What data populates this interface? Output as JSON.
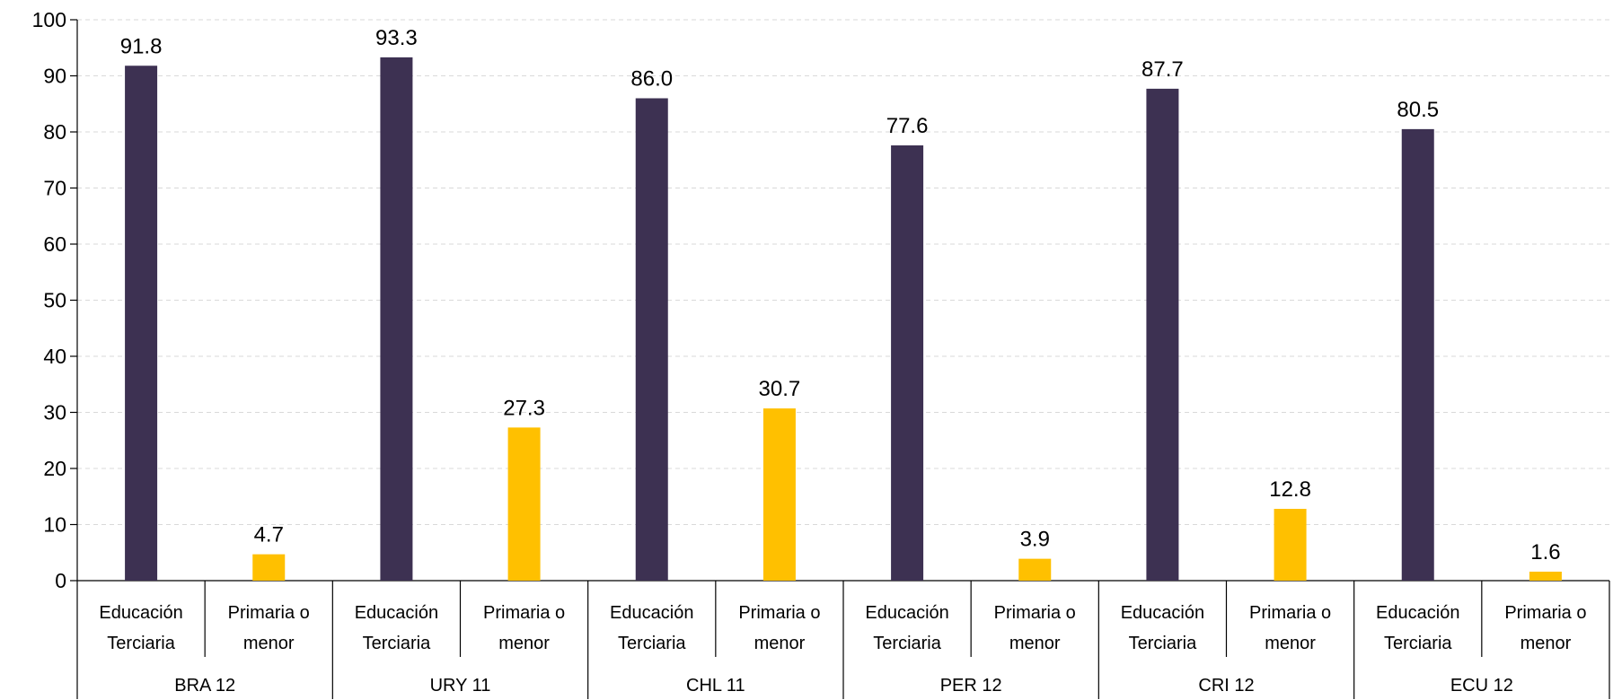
{
  "chart_data": {
    "type": "bar",
    "title": "",
    "xlabel": "",
    "ylabel": "",
    "ylim": [
      0,
      100
    ],
    "yticks": [
      0,
      10,
      20,
      30,
      40,
      50,
      60,
      70,
      80,
      90,
      100
    ],
    "grid": true,
    "legend": "none",
    "groups": [
      {
        "name": "BRA 12",
        "bars": [
          {
            "category": [
              "Educación",
              "Terciaria"
            ],
            "value": 91.8,
            "label": "91.8",
            "color": "#3d3152"
          },
          {
            "category": [
              "Primaria o",
              "menor"
            ],
            "value": 4.7,
            "label": "4.7",
            "color": "#ffc000"
          }
        ]
      },
      {
        "name": "URY 11",
        "bars": [
          {
            "category": [
              "Educación",
              "Terciaria"
            ],
            "value": 93.3,
            "label": "93.3",
            "color": "#3d3152"
          },
          {
            "category": [
              "Primaria o",
              "menor"
            ],
            "value": 27.3,
            "label": "27.3",
            "color": "#ffc000"
          }
        ]
      },
      {
        "name": "CHL 11",
        "bars": [
          {
            "category": [
              "Educación",
              "Terciaria"
            ],
            "value": 86.0,
            "label": "86.0",
            "color": "#3d3152"
          },
          {
            "category": [
              "Primaria o",
              "menor"
            ],
            "value": 30.7,
            "label": "30.7",
            "color": "#ffc000"
          }
        ]
      },
      {
        "name": "PER 12",
        "bars": [
          {
            "category": [
              "Educación",
              "Terciaria"
            ],
            "value": 77.6,
            "label": "77.6",
            "color": "#3d3152"
          },
          {
            "category": [
              "Primaria o",
              "menor"
            ],
            "value": 3.9,
            "label": "3.9",
            "color": "#ffc000"
          }
        ]
      },
      {
        "name": "CRI 12",
        "bars": [
          {
            "category": [
              "Educación",
              "Terciaria"
            ],
            "value": 87.7,
            "label": "87.7",
            "color": "#3d3152"
          },
          {
            "category": [
              "Primaria o",
              "menor"
            ],
            "value": 12.8,
            "label": "12.8",
            "color": "#ffc000"
          }
        ]
      },
      {
        "name": "ECU 12",
        "bars": [
          {
            "category": [
              "Educación",
              "Terciaria"
            ],
            "value": 80.5,
            "label": "80.5",
            "color": "#3d3152"
          },
          {
            "category": [
              "Primaria o",
              "menor"
            ],
            "value": 1.6,
            "label": "1.6",
            "color": "#ffc000"
          }
        ]
      }
    ]
  }
}
